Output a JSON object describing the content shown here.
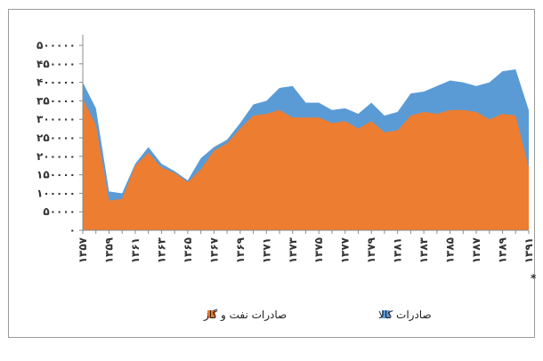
{
  "chart_data": {
    "type": "area",
    "title": "",
    "xlabel": "",
    "ylabel": "",
    "ylim": [
      0,
      500000
    ],
    "y_ticks": [
      "۵۰۰۰۰۰",
      "۴۵۰۰۰۰",
      "۴۰۰۰۰۰",
      "۳۵۰۰۰۰",
      "۳۰۰۰۰۰",
      "۲۵۰۰۰۰",
      "۲۰۰۰۰۰",
      "۱۵۰۰۰۰",
      "۱۰۰۰۰۰",
      "۵۰۰۰۰",
      "۰"
    ],
    "y_tick_values": [
      500000,
      450000,
      400000,
      350000,
      300000,
      250000,
      200000,
      150000,
      100000,
      50000,
      0
    ],
    "x": [
      1357,
      1358,
      1359,
      1360,
      1361,
      1362,
      1363,
      1364,
      1365,
      1366,
      1367,
      1368,
      1369,
      1370,
      1371,
      1372,
      1373,
      1374,
      1375,
      1376,
      1377,
      1378,
      1379,
      1380,
      1381,
      1382,
      1383,
      1384,
      1385,
      1386,
      1387,
      1388,
      1389,
      1390,
      1391
    ],
    "x_tick_labels": [
      "۱۳۵۷",
      "۱۳۵۹",
      "۱۳۶۱",
      "۱۳۶۳",
      "۱۳۶۵",
      "۱۳۶۷",
      "۱۳۶۹",
      "۱۳۷۱",
      "۱۳۷۳",
      "۱۳۷۵",
      "۱۳۷۷",
      "۱۳۷۹",
      "۱۳۸۱",
      "۱۳۸۳",
      "۱۳۸۵",
      "۱۳۸۷",
      "۱۳۸۹",
      "۱۳۹۱"
    ],
    "x_tick_years": [
      1357,
      1359,
      1361,
      1363,
      1365,
      1367,
      1369,
      1371,
      1373,
      1375,
      1377,
      1379,
      1381,
      1383,
      1385,
      1387,
      1389,
      1391
    ],
    "footnote_mark": "**",
    "series": [
      {
        "name": "صادرات کالا",
        "color": "#5b9bd5",
        "values": [
          400000,
          330000,
          105000,
          100000,
          180000,
          225000,
          180000,
          160000,
          135000,
          195000,
          225000,
          245000,
          290000,
          340000,
          350000,
          385000,
          390000,
          345000,
          345000,
          325000,
          330000,
          315000,
          345000,
          310000,
          320000,
          370000,
          375000,
          390000,
          405000,
          400000,
          390000,
          400000,
          430000,
          435000,
          325000
        ]
      },
      {
        "name": "صادرات نفت و گاز",
        "color": "#ed7d31",
        "values": [
          355000,
          285000,
          80000,
          85000,
          175000,
          210000,
          170000,
          155000,
          130000,
          165000,
          215000,
          235000,
          275000,
          310000,
          315000,
          325000,
          305000,
          305000,
          305000,
          290000,
          295000,
          275000,
          295000,
          265000,
          270000,
          310000,
          320000,
          315000,
          325000,
          325000,
          320000,
          300000,
          315000,
          310000,
          170000
        ]
      }
    ]
  }
}
